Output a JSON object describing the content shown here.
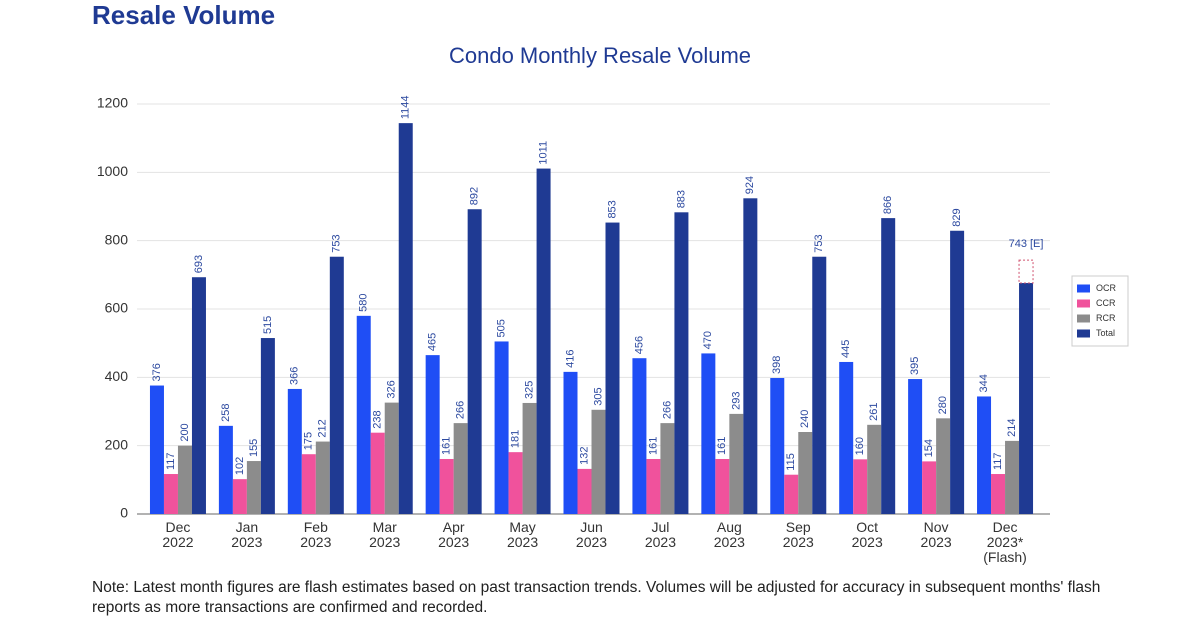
{
  "header": "Resale Volume",
  "chart_data": {
    "type": "bar",
    "title": "Condo Monthly Resale Volume",
    "categories": [
      "Dec\n2022",
      "Jan\n2023",
      "Feb\n2023",
      "Mar\n2023",
      "Apr\n2023",
      "May\n2023",
      "Jun\n2023",
      "Jul\n2023",
      "Aug\n2023",
      "Sep\n2023",
      "Oct\n2023",
      "Nov\n2023",
      "Dec\n2023*\n(Flash)"
    ],
    "series": [
      {
        "name": "OCR",
        "color": "#1f4ef5",
        "values": [
          376,
          258,
          366,
          580,
          465,
          505,
          416,
          456,
          470,
          398,
          445,
          395,
          344
        ]
      },
      {
        "name": "CCR",
        "color": "#f0529c",
        "values": [
          117,
          102,
          175,
          238,
          161,
          181,
          132,
          161,
          161,
          115,
          160,
          154,
          117
        ]
      },
      {
        "name": "RCR",
        "color": "#8c8c8c",
        "values": [
          200,
          155,
          212,
          326,
          266,
          325,
          305,
          266,
          293,
          240,
          261,
          280,
          214
        ]
      },
      {
        "name": "Total",
        "color": "#1f3a93",
        "values": [
          693,
          515,
          753,
          1144,
          892,
          1011,
          853,
          883,
          924,
          753,
          866,
          829,
          676
        ]
      }
    ],
    "estimate": {
      "value": 743,
      "label": "743 [E]"
    },
    "ylim": [
      0,
      1200
    ],
    "yticks": [
      0,
      200,
      400,
      600,
      800,
      1000,
      1200
    ],
    "grid": true,
    "legend": "right"
  },
  "note": "Note: Latest month figures are flash estimates based on past transaction trends. Volumes will be adjusted for accuracy in subsequent months' flash reports as more transactions are confirmed and recorded."
}
